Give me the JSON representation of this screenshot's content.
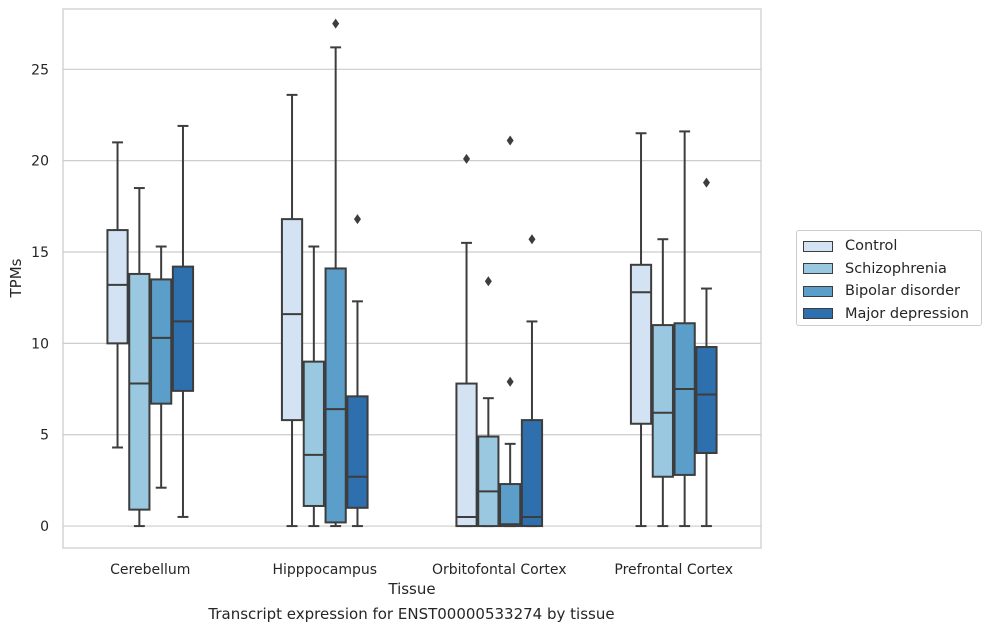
{
  "caption": "Transcript expression for ENST00000533274 by tissue",
  "chart_data": {
    "type": "box",
    "xlabel": "Tissue",
    "ylabel": "TPMs",
    "ylim": [
      -1.2,
      28.3
    ],
    "yticks": [
      0,
      5,
      10,
      15,
      20,
      25
    ],
    "grid": "horizontal",
    "legend_position": "right",
    "categories": [
      "Cerebellum",
      "Hipppocampus",
      "Orbitofontal Cortex",
      "Prefrontal Cortex"
    ],
    "series": [
      {
        "name": "Control",
        "color": "#d3e3f3",
        "boxes": [
          {
            "whisker_low": 4.3,
            "q1": 10.0,
            "median": 13.2,
            "q3": 16.2,
            "whisker_high": 21.0,
            "outliers": []
          },
          {
            "whisker_low": 0.0,
            "q1": 5.8,
            "median": 11.6,
            "q3": 16.8,
            "whisker_high": 23.6,
            "outliers": []
          },
          {
            "whisker_low": 0.0,
            "q1": 0.0,
            "median": 0.5,
            "q3": 7.8,
            "whisker_high": 15.5,
            "outliers": [
              20.1
            ]
          },
          {
            "whisker_low": 0.0,
            "q1": 5.6,
            "median": 12.8,
            "q3": 14.3,
            "whisker_high": 21.5,
            "outliers": []
          }
        ]
      },
      {
        "name": "Schizophrenia",
        "color": "#9ac8e0",
        "boxes": [
          {
            "whisker_low": 0.0,
            "q1": 0.9,
            "median": 7.8,
            "q3": 13.8,
            "whisker_high": 18.5,
            "outliers": []
          },
          {
            "whisker_low": 0.0,
            "q1": 1.1,
            "median": 3.9,
            "q3": 9.0,
            "whisker_high": 15.3,
            "outliers": []
          },
          {
            "whisker_low": 0.0,
            "q1": 0.0,
            "median": 1.9,
            "q3": 4.9,
            "whisker_high": 7.0,
            "outliers": [
              13.4
            ]
          },
          {
            "whisker_low": 0.0,
            "q1": 2.7,
            "median": 6.2,
            "q3": 11.0,
            "whisker_high": 15.7,
            "outliers": []
          }
        ]
      },
      {
        "name": "Bipolar disorder",
        "color": "#5a9ec9",
        "boxes": [
          {
            "whisker_low": 2.1,
            "q1": 6.7,
            "median": 10.3,
            "q3": 13.5,
            "whisker_high": 15.3,
            "outliers": []
          },
          {
            "whisker_low": 0.0,
            "q1": 0.2,
            "median": 6.4,
            "q3": 14.1,
            "whisker_high": 26.2,
            "outliers": [
              27.5
            ]
          },
          {
            "whisker_low": 0.0,
            "q1": 0.0,
            "median": 0.1,
            "q3": 2.3,
            "whisker_high": 4.5,
            "outliers": [
              7.9,
              21.1
            ]
          },
          {
            "whisker_low": 0.0,
            "q1": 2.8,
            "median": 7.5,
            "q3": 11.1,
            "whisker_high": 21.6,
            "outliers": []
          }
        ]
      },
      {
        "name": "Major depression",
        "color": "#2e6fae",
        "boxes": [
          {
            "whisker_low": 0.5,
            "q1": 7.4,
            "median": 11.2,
            "q3": 14.2,
            "whisker_high": 21.9,
            "outliers": []
          },
          {
            "whisker_low": 0.0,
            "q1": 1.0,
            "median": 2.7,
            "q3": 7.1,
            "whisker_high": 12.3,
            "outliers": [
              16.8
            ]
          },
          {
            "whisker_low": 0.0,
            "q1": 0.0,
            "median": 0.5,
            "q3": 5.8,
            "whisker_high": 11.2,
            "outliers": [
              15.7
            ]
          },
          {
            "whisker_low": 0.0,
            "q1": 4.0,
            "median": 7.2,
            "q3": 9.8,
            "whisker_high": 13.0,
            "outliers": [
              18.8
            ]
          }
        ]
      }
    ]
  }
}
